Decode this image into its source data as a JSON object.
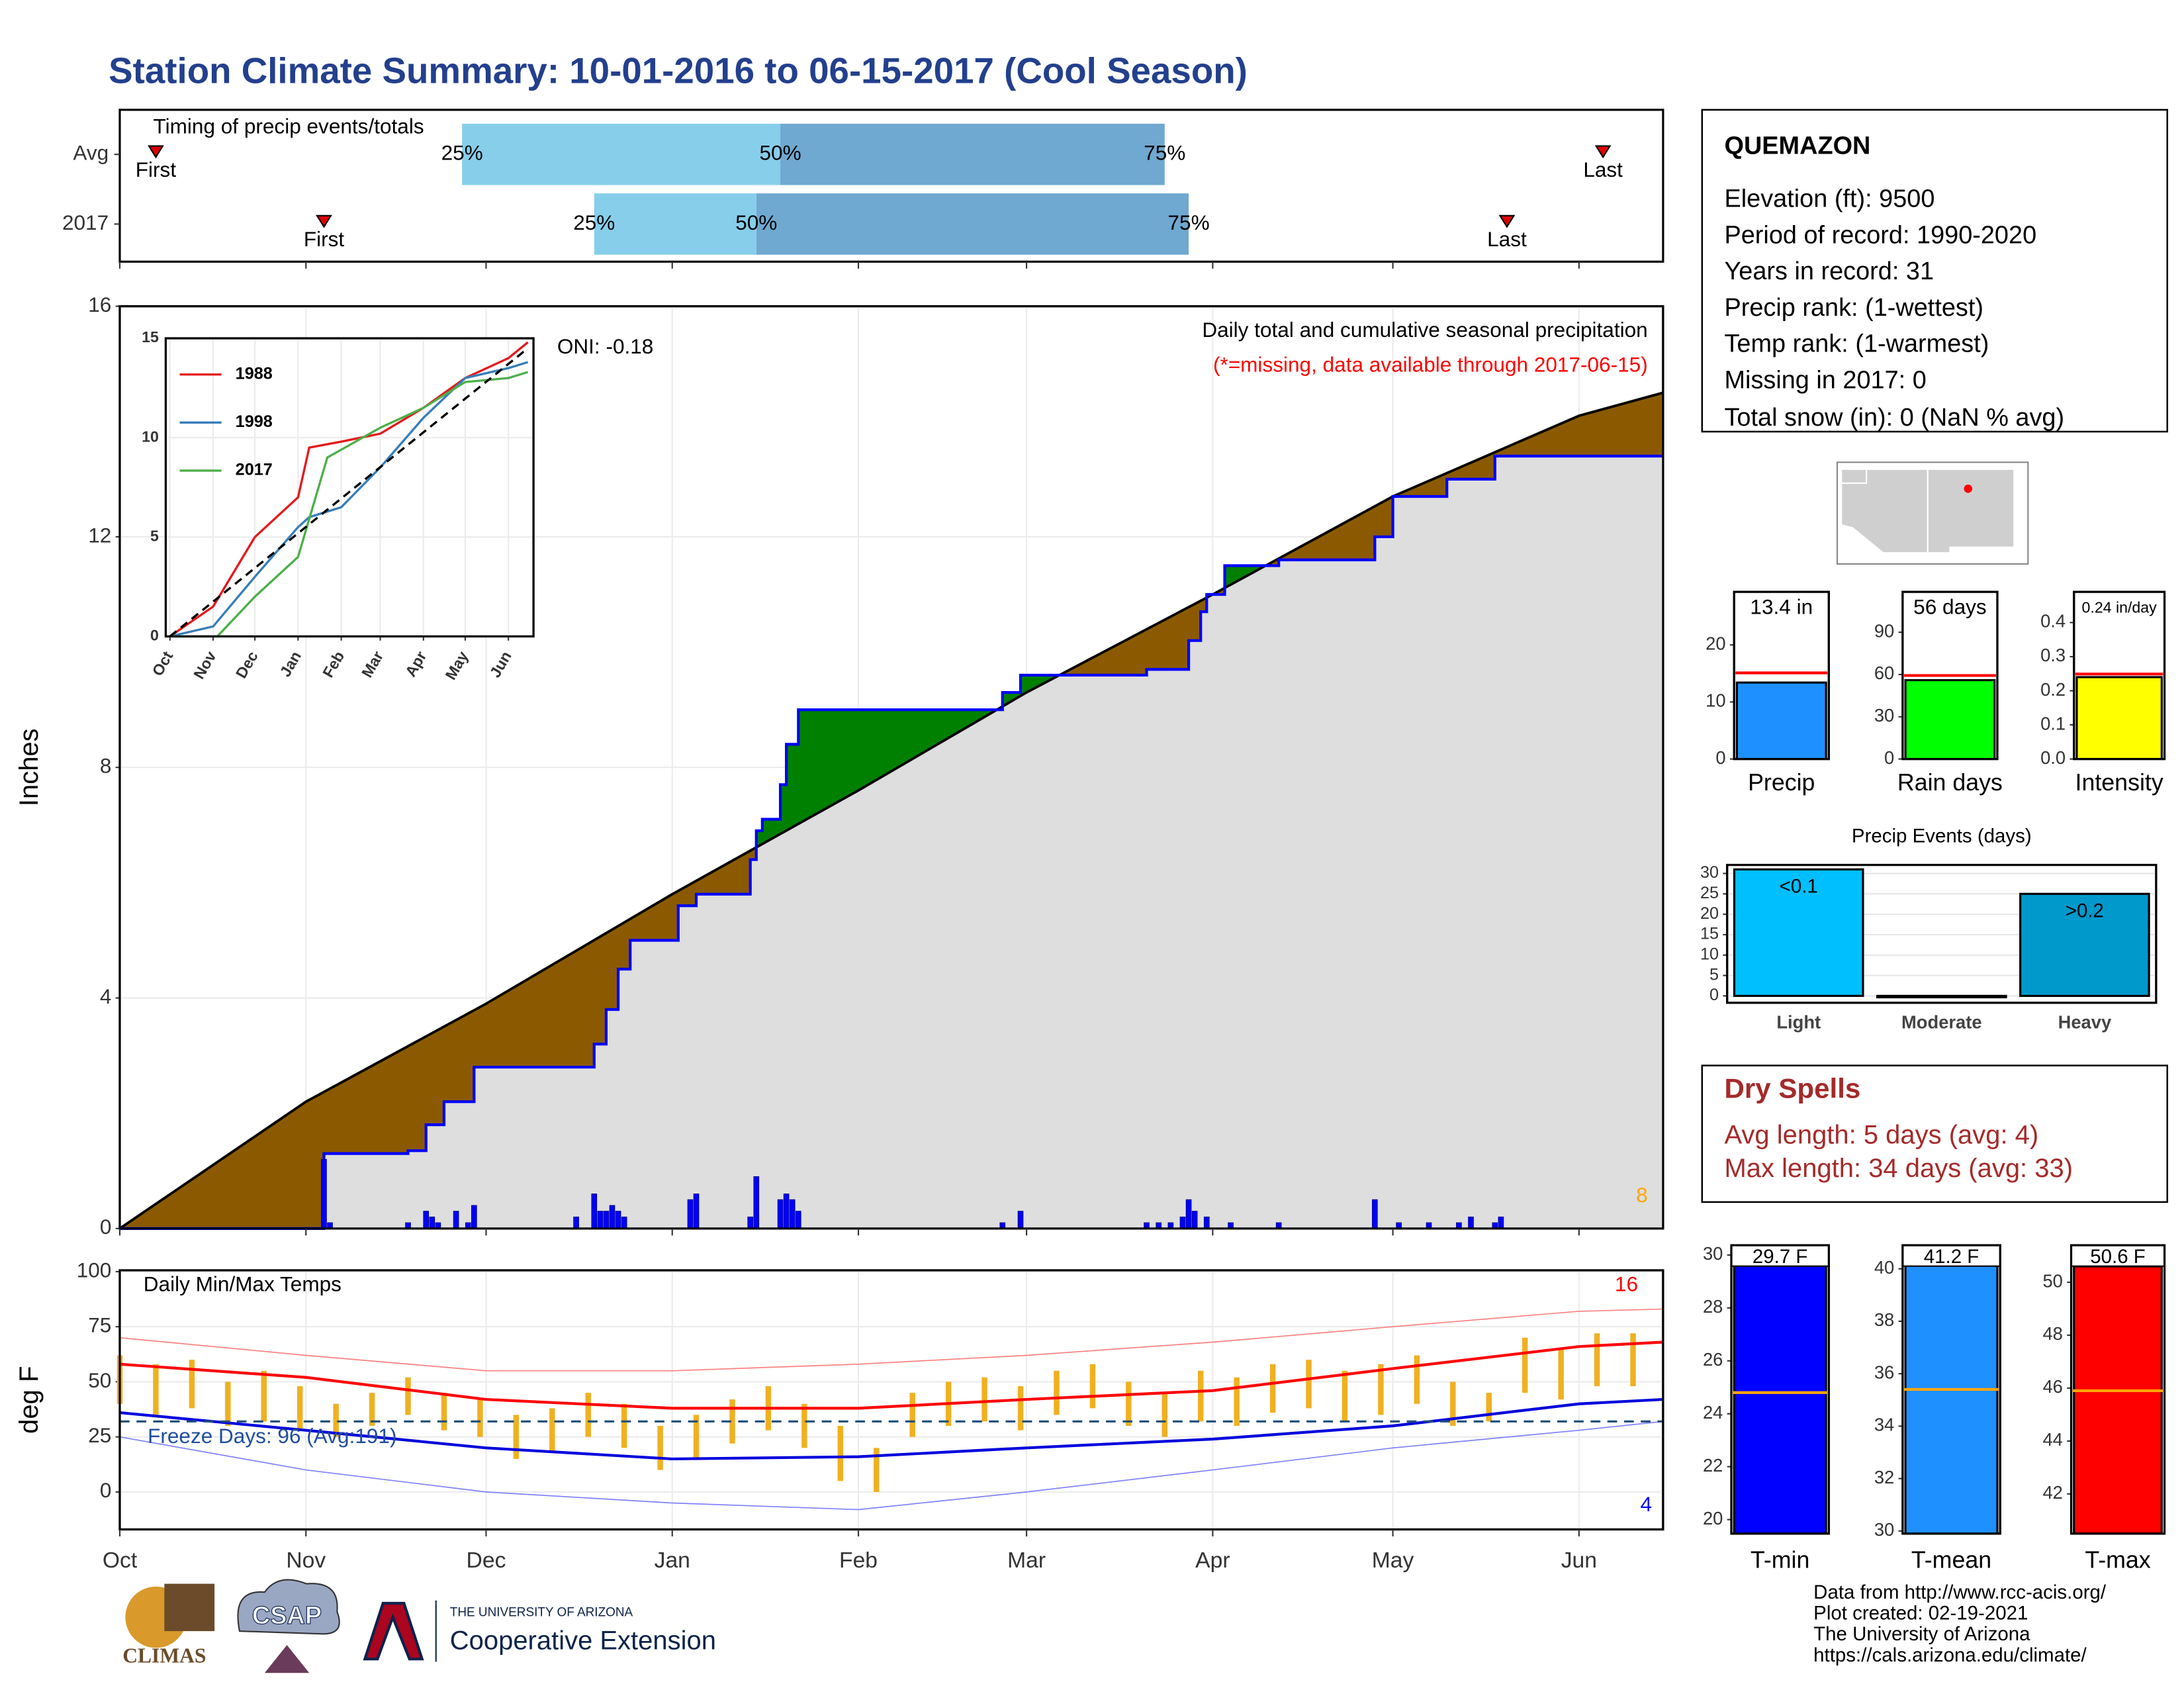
{
  "title": "Station Climate Summary: 10-01-2016 to 06-15-2017 (Cool Season)",
  "station_info": {
    "name": "QUEMAZON",
    "lines": [
      "Elevation (ft): 9500",
      "Period of record: 1990-2020",
      "Years in record: 31",
      "Precip rank:  (1-wettest)",
      "Temp rank:  (1-warmest)",
      "Missing in 2017: 0",
      "Total snow (in): 0 (NaN % avg)"
    ]
  },
  "dry_spells": {
    "title": "Dry Spells",
    "lines": [
      "Avg length: 5 days (avg: 4)",
      "Max length: 34 days (avg: 33)"
    ]
  },
  "footer": {
    "logos": [
      "CLIMAS",
      "CSAP",
      "THE UNIVERSITY OF ARIZONA",
      "Cooperative Extension"
    ],
    "credits": [
      "Data from http://www.rcc-acis.org/",
      "Plot created: 02-19-2021",
      "The University of Arizona",
      "https://cals.arizona.edu/climate/"
    ]
  },
  "chart_data": [
    {
      "type": "timeline",
      "subtitle": "Timing of precip events/totals",
      "categories": [
        "Avg",
        "2017"
      ],
      "first": [
        6,
        34
      ],
      "q25": [
        57,
        79
      ],
      "q50": [
        110,
        106
      ],
      "q75": [
        174,
        178
      ],
      "last": [
        247,
        231
      ],
      "marker_labels": {
        "first": "First",
        "last": "Last",
        "q25": "25%",
        "q50": "50%",
        "q75": "75%"
      },
      "colors": {
        "lower": "#87ceeb",
        "upper": "#6fa8d0",
        "marker": "#e00000"
      },
      "xlim": [
        0,
        257
      ]
    },
    {
      "type": "cumulative",
      "y_label": "Inches",
      "xlim": [
        0,
        257
      ],
      "ylim": [
        0,
        16
      ],
      "yticks": [
        0,
        4,
        8,
        12,
        16
      ],
      "grid": true,
      "annotations": {
        "oni": "ONI: -0.18",
        "description": "Daily total and cumulative seasonal precipitation",
        "missing_note": "(*=missing, data available through 2017-06-15)",
        "corner_count": "8"
      },
      "average": {
        "x": [
          0,
          31,
          61,
          92,
          123,
          151,
          182,
          212,
          243,
          257
        ],
        "values": [
          0,
          2.2,
          3.9,
          5.8,
          7.6,
          9.3,
          11.0,
          12.7,
          14.1,
          14.5
        ],
        "color": "#000000"
      },
      "season": {
        "x": [
          0,
          34,
          48,
          51,
          54,
          59,
          79,
          81,
          83,
          85,
          93,
          96,
          105,
          106,
          107,
          110,
          111,
          113,
          147,
          150,
          171,
          178,
          180,
          181,
          184,
          193,
          209,
          212,
          221,
          229,
          257
        ],
        "values": [
          0,
          1.3,
          1.35,
          1.8,
          2.2,
          2.8,
          3.2,
          3.8,
          4.5,
          5.0,
          5.6,
          5.8,
          6.4,
          6.9,
          7.1,
          7.7,
          8.4,
          9.0,
          9.3,
          9.6,
          9.7,
          10.2,
          10.7,
          11.0,
          11.5,
          11.6,
          12.0,
          12.7,
          13.0,
          13.4,
          13.4
        ],
        "color": "#0000ff"
      },
      "daily": {
        "x": [
          34,
          35,
          48,
          51,
          52,
          53,
          56,
          58,
          59,
          76,
          79,
          80,
          81,
          82,
          83,
          84,
          95,
          96,
          105,
          106,
          110,
          111,
          112,
          113,
          147,
          150,
          171,
          173,
          175,
          177,
          178,
          179,
          181,
          185,
          193,
          209,
          213,
          218,
          223,
          225,
          229,
          230
        ],
        "values": [
          1.2,
          0.1,
          0.1,
          0.3,
          0.2,
          0.1,
          0.3,
          0.1,
          0.4,
          0.2,
          0.6,
          0.3,
          0.3,
          0.4,
          0.3,
          0.2,
          0.5,
          0.6,
          0.2,
          0.9,
          0.5,
          0.6,
          0.5,
          0.3,
          0.1,
          0.3,
          0.1,
          0.1,
          0.1,
          0.2,
          0.5,
          0.3,
          0.2,
          0.1,
          0.1,
          0.5,
          0.1,
          0.1,
          0.1,
          0.2,
          0.1,
          0.2
        ],
        "color": "#0000ff"
      },
      "fill_colors": {
        "below_average": "#8b5a00",
        "above_average": "#008000",
        "base": "#dedede"
      }
    },
    {
      "type": "line",
      "xlim": [
        -3,
        261
      ],
      "ylim": [
        0,
        15
      ],
      "yticks": [
        0,
        5,
        10,
        15
      ],
      "xticks": [
        {
          "value": 0,
          "label": "Oct"
        },
        {
          "value": 31,
          "label": "Nov"
        },
        {
          "value": 61,
          "label": "Dec"
        },
        {
          "value": 92,
          "label": "Jan"
        },
        {
          "value": 123,
          "label": "Feb"
        },
        {
          "value": 151,
          "label": "Mar"
        },
        {
          "value": 182,
          "label": "Apr"
        },
        {
          "value": 212,
          "label": "May"
        },
        {
          "value": 243,
          "label": "Jun"
        }
      ],
      "series": [
        {
          "name": "1988",
          "color": "#e41a1c",
          "x": [
            0,
            31,
            61,
            92,
            100,
            123,
            151,
            182,
            212,
            243,
            257
          ],
          "values": [
            0,
            1.5,
            5,
            7,
            9.5,
            9.8,
            10.2,
            11.5,
            13,
            14,
            14.8
          ]
        },
        {
          "name": "1998",
          "color": "#377eb8",
          "x": [
            0,
            31,
            61,
            92,
            100,
            123,
            151,
            182,
            212,
            243,
            257
          ],
          "values": [
            0,
            0.5,
            3,
            5.5,
            6,
            6.5,
            8.5,
            11,
            13,
            13.5,
            13.8
          ]
        },
        {
          "name": "2017",
          "color": "#4daf4a",
          "x": [
            0,
            34,
            61,
            92,
            113,
            151,
            182,
            212,
            243,
            257
          ],
          "values": [
            0,
            0,
            2,
            4,
            9,
            10.5,
            11.5,
            12.8,
            13,
            13.3
          ]
        }
      ],
      "average": {
        "x": [
          0,
          257
        ],
        "values": [
          0,
          14.5
        ],
        "color": "#000000"
      }
    },
    {
      "type": "temperature",
      "title": "Daily Min/Max Temps",
      "y_label": "deg F",
      "xlim": [
        0,
        257
      ],
      "ylim": [
        -17,
        100.6
      ],
      "yticks": [
        0,
        25,
        50,
        75,
        100
      ],
      "grid": true,
      "xticks": [
        {
          "value": 0,
          "label": "Oct"
        },
        {
          "value": 31,
          "label": "Nov"
        },
        {
          "value": 61,
          "label": "Dec"
        },
        {
          "value": 92,
          "label": "Jan"
        },
        {
          "value": 123,
          "label": "Feb"
        },
        {
          "value": 151,
          "label": "Mar"
        },
        {
          "value": 182,
          "label": "Apr"
        },
        {
          "value": 212,
          "label": "May"
        },
        {
          "value": 243,
          "label": "Jun"
        }
      ],
      "freeze_line": 32,
      "annotations": {
        "freeze_days": "Freeze Days: 96 (Avg:191)",
        "hot_count": "16",
        "cold_count": "4"
      },
      "record_max": {
        "x": [
          0,
          31,
          61,
          92,
          123,
          151,
          182,
          212,
          243,
          257
        ],
        "values": [
          70,
          62,
          55,
          55,
          58,
          62,
          68,
          75,
          82,
          83
        ],
        "color": "#ff8080"
      },
      "record_min": {
        "x": [
          0,
          31,
          61,
          92,
          123,
          151,
          182,
          212,
          243,
          257
        ],
        "values": [
          25,
          10,
          0,
          -5,
          -8,
          0,
          10,
          20,
          28,
          32
        ],
        "color": "#8080ff"
      },
      "avg_max": {
        "x": [
          0,
          31,
          61,
          92,
          123,
          151,
          182,
          212,
          243,
          257
        ],
        "values": [
          58,
          52,
          42,
          38,
          38,
          42,
          46,
          56,
          66,
          68
        ],
        "color": "#ff0000"
      },
      "avg_min": {
        "x": [
          0,
          31,
          61,
          92,
          123,
          151,
          182,
          212,
          243,
          257
        ],
        "values": [
          36,
          28,
          20,
          15,
          16,
          20,
          24,
          30,
          40,
          42
        ],
        "color": "#0000dd"
      },
      "daily": {
        "x": [
          0,
          6,
          12,
          18,
          24,
          30,
          36,
          42,
          48,
          54,
          60,
          66,
          72,
          78,
          84,
          90,
          96,
          102,
          108,
          114,
          120,
          126,
          132,
          138,
          144,
          150,
          156,
          162,
          168,
          174,
          180,
          186,
          192,
          198,
          204,
          210,
          216,
          222,
          228,
          234,
          240,
          246,
          252
        ],
        "max": [
          62,
          58,
          60,
          50,
          55,
          48,
          40,
          45,
          52,
          45,
          42,
          35,
          38,
          45,
          40,
          30,
          35,
          42,
          48,
          40,
          30,
          20,
          45,
          50,
          52,
          48,
          55,
          58,
          50,
          45,
          55,
          52,
          58,
          60,
          55,
          58,
          62,
          50,
          45,
          70,
          65,
          72,
          72
        ],
        "min": [
          40,
          35,
          38,
          30,
          32,
          28,
          25,
          30,
          35,
          28,
          25,
          15,
          18,
          25,
          20,
          10,
          15,
          22,
          28,
          20,
          5,
          0,
          25,
          30,
          32,
          28,
          35,
          38,
          30,
          25,
          32,
          30,
          36,
          38,
          32,
          35,
          40,
          30,
          32,
          45,
          42,
          48,
          48
        ],
        "color": "#f0b020"
      }
    },
    {
      "type": "bar",
      "categories": [
        "Precip"
      ],
      "values": [
        13.4
      ],
      "value_labels": [
        "13.4 in"
      ],
      "average": 15.1,
      "average_color": "#ff0000",
      "color": "#1e90ff",
      "ylim": [
        0,
        29.3
      ],
      "yticks": [
        0,
        10,
        20
      ]
    },
    {
      "type": "bar",
      "categories": [
        "Rain days"
      ],
      "values": [
        56
      ],
      "value_labels": [
        "56 days"
      ],
      "average": 59.3,
      "average_color": "#ff0000",
      "color": "#00ff00",
      "ylim": [
        0,
        118.7
      ],
      "yticks": [
        0,
        30,
        60,
        90
      ]
    },
    {
      "type": "bar",
      "categories": [
        "Intensity"
      ],
      "values": [
        0.24
      ],
      "value_labels": [
        "0.24 in/day"
      ],
      "average": 0.249,
      "average_color": "#ff0000",
      "color": "#ffff00",
      "ylim": [
        0,
        0.49
      ],
      "yticks": [
        {
          "value": 0,
          "label": "0.0"
        },
        0.1,
        0.2,
        0.3,
        0.4
      ]
    },
    {
      "type": "bar",
      "title": "Precip Events (days)",
      "categories": [
        "Light",
        "Moderate",
        "Heavy"
      ],
      "values": [
        31,
        0,
        25
      ],
      "value_labels": [
        "<0.1",
        null,
        ">0.2"
      ],
      "colors": [
        "#00bfff",
        "#1e90ff",
        "#0099cc"
      ],
      "ylim": [
        -1.7,
        32.1
      ],
      "yticks": [
        0,
        5,
        10,
        15,
        20,
        25,
        30
      ],
      "grid": true
    },
    {
      "type": "bar",
      "categories": [
        "T-min"
      ],
      "values": [
        29.7
      ],
      "value_labels": [
        "29.7 F"
      ],
      "average": 24.8,
      "average_color": "#ffa500",
      "color": "#0000ff",
      "ylim": [
        19.47,
        30.37
      ],
      "yticks": [
        20,
        22,
        24,
        26,
        28,
        30
      ]
    },
    {
      "type": "bar",
      "categories": [
        "T-mean"
      ],
      "values": [
        41.2
      ],
      "value_labels": [
        "41.2 F"
      ],
      "average": 35.4,
      "average_color": "#ffa500",
      "color": "#1e90ff",
      "ylim": [
        29.9,
        40.9
      ],
      "yticks": [
        30,
        32,
        34,
        36,
        38,
        40
      ]
    },
    {
      "type": "bar",
      "categories": [
        "T-max"
      ],
      "values": [
        50.6
      ],
      "value_labels": [
        "50.6 F"
      ],
      "average": 45.9,
      "average_color": "#ffa500",
      "color": "#ff0000",
      "ylim": [
        40.5,
        51.4
      ],
      "yticks": [
        42,
        44,
        46,
        48,
        50
      ]
    }
  ]
}
